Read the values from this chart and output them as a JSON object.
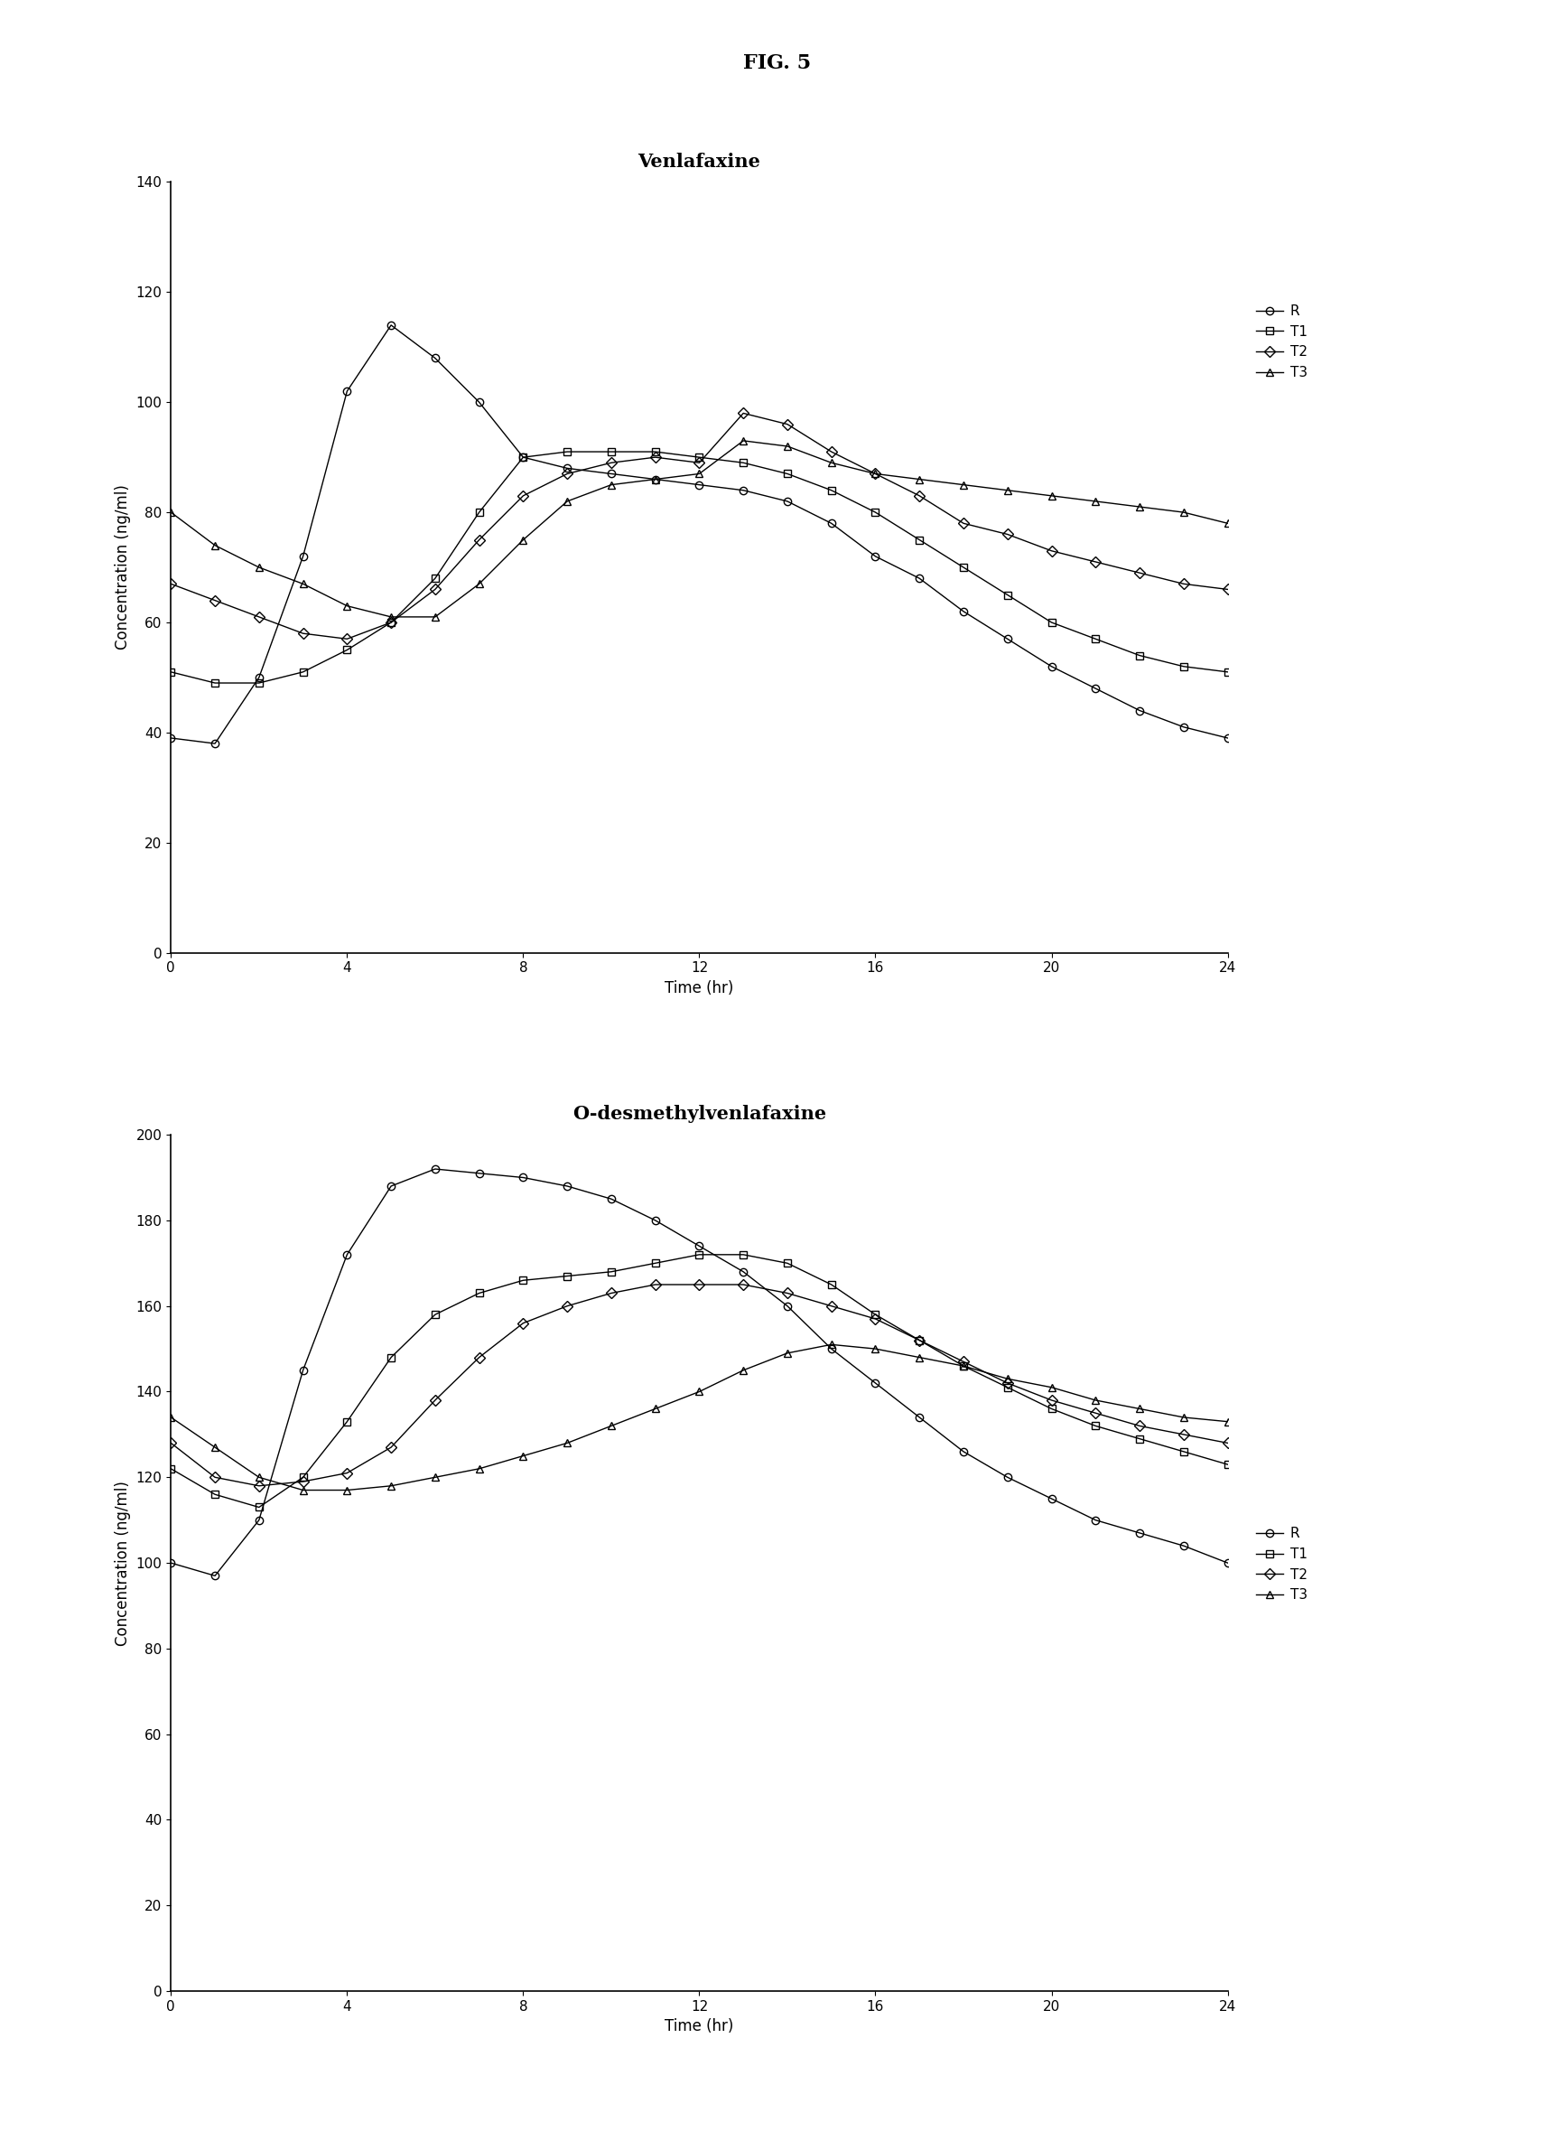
{
  "fig_title": "FIG. 5",
  "plot1_title": "Venlafaxine",
  "plot2_title": "O-desmethylvenlafaxine",
  "xlabel": "Time (hr)",
  "ylabel": "Concentration (ng/ml)",
  "plot1_ylim": [
    0,
    140
  ],
  "plot1_yticks": [
    0,
    20,
    40,
    60,
    80,
    100,
    120,
    140
  ],
  "plot2_ylim": [
    0,
    200
  ],
  "plot2_yticks": [
    0,
    20,
    40,
    60,
    80,
    100,
    120,
    140,
    160,
    180,
    200
  ],
  "xlim": [
    0,
    24
  ],
  "xticks": [
    0,
    4,
    8,
    12,
    16,
    20,
    24
  ],
  "plot1": {
    "R": {
      "x": [
        0,
        1,
        2,
        3,
        4,
        5,
        6,
        7,
        8,
        9,
        10,
        11,
        12,
        13,
        14,
        15,
        16,
        17,
        18,
        19,
        20,
        21,
        22,
        23,
        24
      ],
      "y": [
        39,
        38,
        50,
        72,
        102,
        114,
        108,
        100,
        90,
        88,
        87,
        86,
        85,
        84,
        82,
        78,
        72,
        68,
        62,
        57,
        52,
        48,
        44,
        41,
        39
      ]
    },
    "T1": {
      "x": [
        0,
        1,
        2,
        3,
        4,
        5,
        6,
        7,
        8,
        9,
        10,
        11,
        12,
        13,
        14,
        15,
        16,
        17,
        18,
        19,
        20,
        21,
        22,
        23,
        24
      ],
      "y": [
        51,
        49,
        49,
        51,
        55,
        60,
        68,
        80,
        90,
        91,
        91,
        91,
        90,
        89,
        87,
        84,
        80,
        75,
        70,
        65,
        60,
        57,
        54,
        52,
        51
      ]
    },
    "T2": {
      "x": [
        0,
        1,
        2,
        3,
        4,
        5,
        6,
        7,
        8,
        9,
        10,
        11,
        12,
        13,
        14,
        15,
        16,
        17,
        18,
        19,
        20,
        21,
        22,
        23,
        24
      ],
      "y": [
        67,
        64,
        61,
        58,
        57,
        60,
        66,
        75,
        83,
        87,
        89,
        90,
        89,
        98,
        96,
        91,
        87,
        83,
        78,
        76,
        73,
        71,
        69,
        67,
        66
      ]
    },
    "T3": {
      "x": [
        0,
        1,
        2,
        3,
        4,
        5,
        6,
        7,
        8,
        9,
        10,
        11,
        12,
        13,
        14,
        15,
        16,
        17,
        18,
        19,
        20,
        21,
        22,
        23,
        24
      ],
      "y": [
        80,
        74,
        70,
        67,
        63,
        61,
        61,
        67,
        75,
        82,
        85,
        86,
        87,
        93,
        92,
        89,
        87,
        86,
        85,
        84,
        83,
        82,
        81,
        80,
        78
      ]
    }
  },
  "plot2": {
    "R": {
      "x": [
        0,
        1,
        2,
        3,
        4,
        5,
        6,
        7,
        8,
        9,
        10,
        11,
        12,
        13,
        14,
        15,
        16,
        17,
        18,
        19,
        20,
        21,
        22,
        23,
        24
      ],
      "y": [
        100,
        97,
        110,
        145,
        172,
        188,
        192,
        191,
        190,
        188,
        185,
        180,
        174,
        168,
        160,
        150,
        142,
        134,
        126,
        120,
        115,
        110,
        107,
        104,
        100
      ]
    },
    "T1": {
      "x": [
        0,
        1,
        2,
        3,
        4,
        5,
        6,
        7,
        8,
        9,
        10,
        11,
        12,
        13,
        14,
        15,
        16,
        17,
        18,
        19,
        20,
        21,
        22,
        23,
        24
      ],
      "y": [
        122,
        116,
        113,
        120,
        133,
        148,
        158,
        163,
        166,
        167,
        168,
        170,
        172,
        172,
        170,
        165,
        158,
        152,
        146,
        141,
        136,
        132,
        129,
        126,
        123
      ]
    },
    "T2": {
      "x": [
        0,
        1,
        2,
        3,
        4,
        5,
        6,
        7,
        8,
        9,
        10,
        11,
        12,
        13,
        14,
        15,
        16,
        17,
        18,
        19,
        20,
        21,
        22,
        23,
        24
      ],
      "y": [
        128,
        120,
        118,
        119,
        121,
        127,
        138,
        148,
        156,
        160,
        163,
        165,
        165,
        165,
        163,
        160,
        157,
        152,
        147,
        142,
        138,
        135,
        132,
        130,
        128
      ]
    },
    "T3": {
      "x": [
        0,
        1,
        2,
        3,
        4,
        5,
        6,
        7,
        8,
        9,
        10,
        11,
        12,
        13,
        14,
        15,
        16,
        17,
        18,
        19,
        20,
        21,
        22,
        23,
        24
      ],
      "y": [
        134,
        127,
        120,
        117,
        117,
        118,
        120,
        122,
        125,
        128,
        132,
        136,
        140,
        145,
        149,
        151,
        150,
        148,
        146,
        143,
        141,
        138,
        136,
        134,
        133
      ]
    }
  },
  "line_color": "#000000",
  "background_color": "#ffffff",
  "fig_title_fontsize": 16,
  "plot_title_fontsize": 15,
  "axis_label_fontsize": 12,
  "tick_fontsize": 11,
  "legend_fontsize": 11
}
